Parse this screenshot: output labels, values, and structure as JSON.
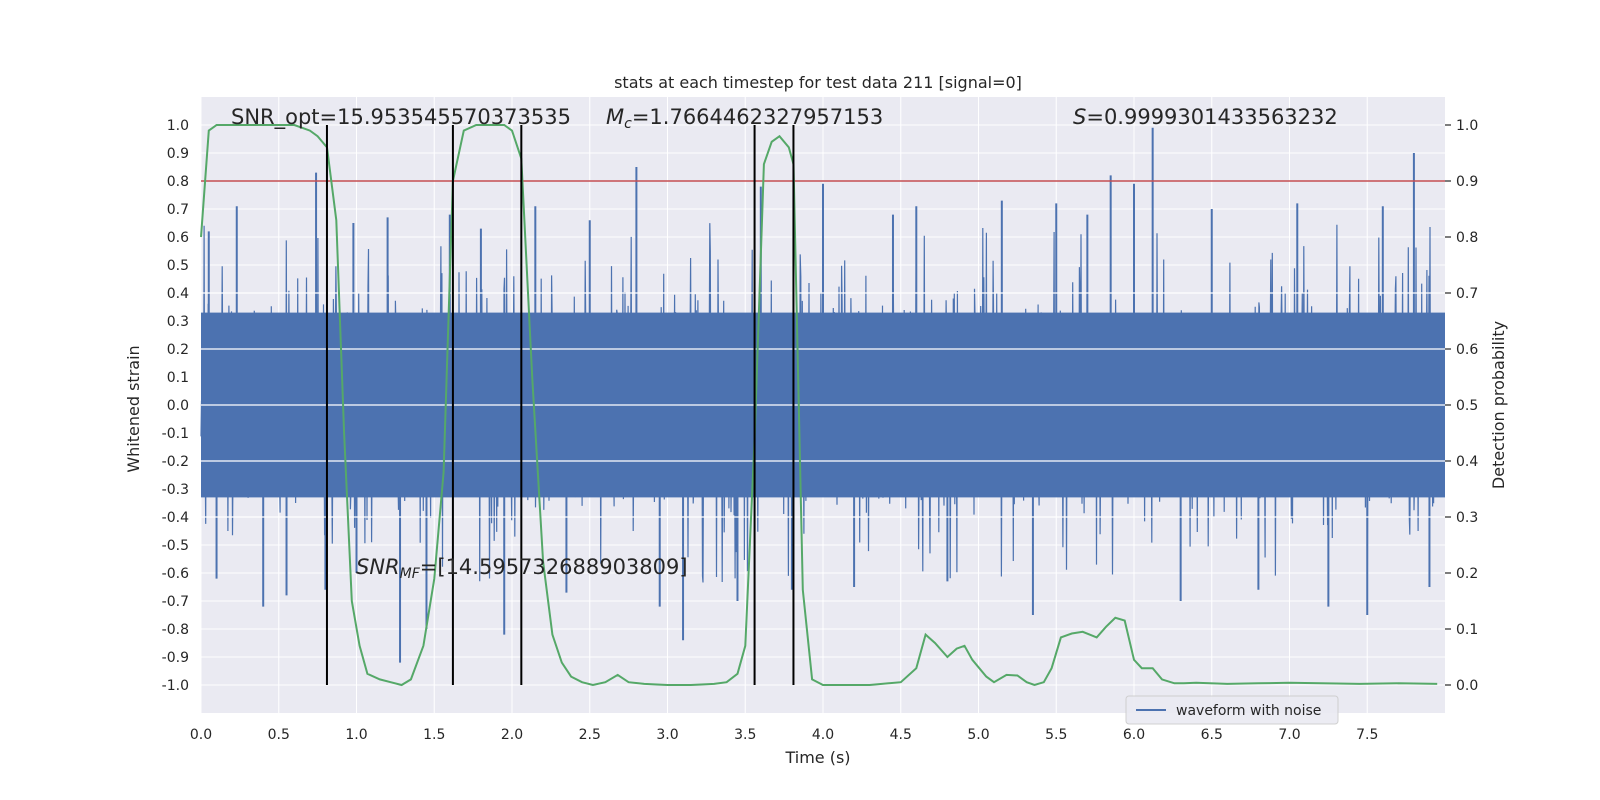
{
  "chart_data": {
    "type": "line",
    "title": "stats at each timestep for test data 211 [signal=0]",
    "xlabel": "Time (s)",
    "ylabel": "Whitened strain",
    "ylabel_right": "Detection probability",
    "xlim": [
      0.0,
      8.0
    ],
    "ylim": [
      -1.1,
      1.1
    ],
    "ylim_right": [
      -0.05,
      1.05
    ],
    "xticks": [
      "0.0",
      "0.5",
      "1.0",
      "1.5",
      "2.0",
      "2.5",
      "3.0",
      "3.5",
      "4.0",
      "4.5",
      "5.0",
      "5.5",
      "6.0",
      "6.5",
      "7.0",
      "7.5"
    ],
    "yticks": [
      "1.0",
      "0.9",
      "0.8",
      "0.7",
      "0.6",
      "0.5",
      "0.4",
      "0.3",
      "0.2",
      "0.1",
      "0.0",
      "-0.1",
      "-0.2",
      "-0.3",
      "-0.4",
      "-0.5",
      "-0.6",
      "-0.7",
      "-0.8",
      "-0.9",
      "-1.0"
    ],
    "yticks_right": [
      "1.0",
      "0.9",
      "0.8",
      "0.7",
      "0.6",
      "0.5",
      "0.4",
      "0.3",
      "0.2",
      "0.1",
      "0.0"
    ],
    "grid": true,
    "legend": {
      "placement": "lower-center-right",
      "entries": [
        "waveform with noise"
      ]
    },
    "annotations": {
      "snr_opt": "SNR_opt=15.953545570373535",
      "mc_symbol": "M",
      "mc_sub": "c",
      "mc_value": "=1.7664462327957153",
      "s_symbol": "S",
      "s_value": "=0.9999301433563232",
      "snr_mf_symbol": "SNR",
      "snr_mf_sub": "MF",
      "snr_mf_value": "=[14.595732688903809]"
    },
    "colors": {
      "waveform": "#4c72b0",
      "probability": "#55a868",
      "threshold": "#c44e52",
      "vlines": "#000000",
      "background": "#eaeaf2",
      "grid": "#ffffff"
    },
    "threshold": 0.9,
    "vlines": [
      0.81,
      1.62,
      2.06,
      3.56,
      3.81
    ],
    "series": [
      {
        "name": "waveform with noise",
        "description_axis": "left",
        "amplitude_core": 0.4,
        "spikes": [
          [
            0.05,
            0.62
          ],
          [
            0.1,
            -0.62
          ],
          [
            0.23,
            0.71
          ],
          [
            0.4,
            -0.72
          ],
          [
            0.55,
            -0.68
          ],
          [
            0.74,
            0.83
          ],
          [
            0.8,
            -0.66
          ],
          [
            0.98,
            0.65
          ],
          [
            1.0,
            -0.6
          ],
          [
            1.2,
            0.67
          ],
          [
            1.28,
            -0.92
          ],
          [
            1.45,
            -0.8
          ],
          [
            1.6,
            0.68
          ],
          [
            1.8,
            0.63
          ],
          [
            1.95,
            -0.82
          ],
          [
            2.15,
            0.71
          ],
          [
            2.35,
            -0.67
          ],
          [
            2.5,
            0.66
          ],
          [
            2.8,
            0.85
          ],
          [
            2.95,
            -0.72
          ],
          [
            3.1,
            -0.84
          ],
          [
            3.45,
            -0.7
          ],
          [
            3.6,
            0.78
          ],
          [
            3.8,
            -0.66
          ],
          [
            4.0,
            0.79
          ],
          [
            4.2,
            -0.65
          ],
          [
            4.45,
            0.68
          ],
          [
            4.6,
            0.71
          ],
          [
            4.8,
            -0.63
          ],
          [
            5.15,
            0.73
          ],
          [
            5.35,
            -0.75
          ],
          [
            5.5,
            0.72
          ],
          [
            5.7,
            0.68
          ],
          [
            5.85,
            0.82
          ],
          [
            6.0,
            0.79
          ],
          [
            6.12,
            0.99
          ],
          [
            6.3,
            -0.7
          ],
          [
            6.5,
            0.7
          ],
          [
            6.8,
            -0.66
          ],
          [
            7.05,
            0.72
          ],
          [
            7.25,
            -0.72
          ],
          [
            7.5,
            -0.75
          ],
          [
            7.6,
            0.71
          ],
          [
            7.8,
            0.9
          ],
          [
            7.9,
            -0.65
          ]
        ]
      },
      {
        "name": "",
        "axis": "right",
        "x": [
          0.0,
          0.05,
          0.1,
          0.2,
          0.3,
          0.4,
          0.5,
          0.6,
          0.7,
          0.75,
          0.81,
          0.87,
          0.92,
          0.97,
          1.02,
          1.07,
          1.15,
          1.22,
          1.29,
          1.35,
          1.43,
          1.5,
          1.56,
          1.62,
          1.69,
          1.77,
          1.85,
          1.95,
          2.0,
          2.06,
          2.13,
          2.2,
          2.26,
          2.32,
          2.38,
          2.45,
          2.52,
          2.6,
          2.68,
          2.75,
          2.85,
          3.0,
          3.15,
          3.3,
          3.38,
          3.45,
          3.5,
          3.56,
          3.62,
          3.67,
          3.72,
          3.78,
          3.81,
          3.87,
          3.93,
          4.0,
          4.1,
          4.3,
          4.5,
          4.6,
          4.66,
          4.72,
          4.8,
          4.86,
          4.91,
          4.96,
          5.05,
          5.1,
          5.18,
          5.25,
          5.31,
          5.36,
          5.42,
          5.47,
          5.53,
          5.6,
          5.67,
          5.76,
          5.82,
          5.88,
          5.94,
          6.0,
          6.05,
          6.12,
          6.18,
          6.26,
          6.32,
          6.4,
          6.6,
          6.8,
          7.0,
          7.2,
          7.45,
          7.7,
          7.95
        ],
        "values": [
          0.8,
          0.99,
          1.0,
          1.0,
          1.0,
          1.0,
          1.0,
          1.0,
          0.99,
          0.98,
          0.96,
          0.83,
          0.45,
          0.15,
          0.07,
          0.02,
          0.01,
          0.005,
          0.0,
          0.01,
          0.07,
          0.19,
          0.38,
          0.9,
          0.99,
          1.0,
          1.0,
          1.0,
          0.99,
          0.94,
          0.55,
          0.22,
          0.09,
          0.04,
          0.015,
          0.005,
          0.0,
          0.005,
          0.018,
          0.005,
          0.002,
          0.0,
          0.0,
          0.002,
          0.005,
          0.02,
          0.07,
          0.44,
          0.93,
          0.97,
          0.98,
          0.96,
          0.93,
          0.17,
          0.01,
          0.0,
          0.0,
          0.0,
          0.005,
          0.03,
          0.09,
          0.075,
          0.05,
          0.065,
          0.07,
          0.045,
          0.015,
          0.005,
          0.018,
          0.017,
          0.005,
          0.0,
          0.005,
          0.03,
          0.085,
          0.092,
          0.095,
          0.085,
          0.104,
          0.12,
          0.115,
          0.045,
          0.03,
          0.03,
          0.01,
          0.003,
          0.003,
          0.004,
          0.002,
          0.003,
          0.004,
          0.003,
          0.002,
          0.003,
          0.002
        ]
      }
    ]
  }
}
